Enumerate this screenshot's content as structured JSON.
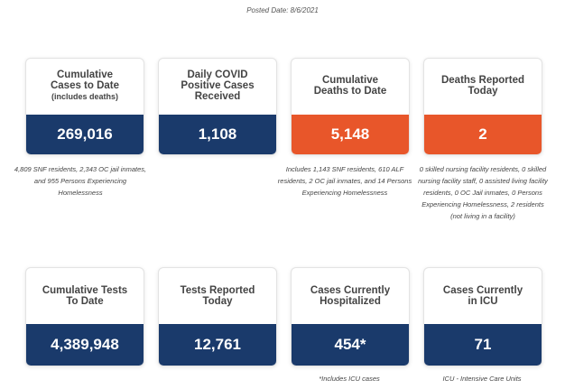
{
  "posted_date": "Posted Date: 8/6/2021",
  "cards": [
    {
      "title": "Cumulative Cases to Date",
      "subtitle": "(includes deaths)",
      "value": "269,016",
      "color": "#1a3a6b",
      "note": "4,809 SNF residents, 2,343 OC jail inmates, and 955 Persons Experiencing Homelessness"
    },
    {
      "title": "Daily COVID Positive Cases Received",
      "subtitle": "",
      "value": "1,108",
      "color": "#1a3a6b",
      "note": ""
    },
    {
      "title": "Cumulative Deaths to Date",
      "subtitle": "",
      "value": "5,148",
      "color": "#e8562a",
      "note": "Includes 1,143 SNF residents, 610 ALF residents, 2 OC jail inmates, and 14 Persons Experiencing Homelessness"
    },
    {
      "title": "Deaths Reported Today",
      "subtitle": "",
      "value": "2",
      "color": "#e8562a",
      "note": "0 skilled nursing facility residents, 0 skilled nursing facility staff, 0 assisted living facility residents, 0 OC Jail inmates, 0 Persons Experiencing Homelessness, 2 residents (not living in a facility)"
    },
    {
      "title": "Cumulative Tests To Date",
      "subtitle": "",
      "value": "4,389,948",
      "color": "#1a3a6b",
      "note": ""
    },
    {
      "title": "Tests Reported Today",
      "subtitle": "",
      "value": "12,761",
      "color": "#1a3a6b",
      "note": ""
    },
    {
      "title": "Cases Currently Hospitalized",
      "subtitle": "",
      "value": "454*",
      "color": "#1a3a6b",
      "note": "*Includes ICU cases"
    },
    {
      "title": "Cases Currently in ICU",
      "subtitle": "",
      "value": "71",
      "color": "#1a3a6b",
      "note": "ICU - Intensive Care Units"
    }
  ]
}
